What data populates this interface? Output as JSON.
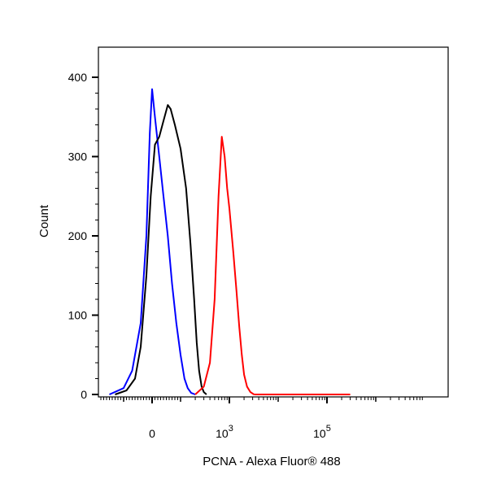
{
  "chart_data": {
    "type": "line",
    "title": "",
    "xlabel": "PCNA - Alexa Fluor® 488",
    "ylabel": "Count",
    "x_scale": "biexponential",
    "x_ticks": [
      {
        "value": 0,
        "base": "0",
        "exp": ""
      },
      {
        "value": 1000,
        "base": "10",
        "exp": "3"
      },
      {
        "value": 100000,
        "base": "10",
        "exp": "5"
      }
    ],
    "ylim": [
      0,
      400
    ],
    "y_ticks": [
      {
        "value": 0,
        "label": "0"
      },
      {
        "value": 100,
        "label": "100"
      },
      {
        "value": 200,
        "label": "200"
      },
      {
        "value": 300,
        "label": "300"
      },
      {
        "value": 400,
        "label": "400"
      }
    ],
    "legend": "none",
    "grid": false,
    "series": [
      {
        "color": "#0000ff",
        "x": [
          -150,
          -100,
          -70,
          -40,
          -20,
          -8,
          0,
          10,
          25,
          40,
          55,
          70,
          85,
          100,
          120,
          140,
          165,
          200
        ],
        "y": [
          0,
          8,
          30,
          90,
          200,
          330,
          385,
          350,
          300,
          250,
          200,
          140,
          90,
          50,
          20,
          8,
          2,
          0
        ]
      },
      {
        "color": "#000000",
        "x": [
          -130,
          -90,
          -60,
          -40,
          -20,
          -5,
          10,
          25,
          40,
          55,
          65,
          80,
          100,
          130,
          160,
          190,
          215,
          240,
          270,
          300,
          340
        ],
        "y": [
          0,
          5,
          20,
          60,
          150,
          250,
          315,
          325,
          345,
          365,
          360,
          340,
          310,
          260,
          190,
          120,
          65,
          30,
          10,
          3,
          0
        ]
      },
      {
        "color": "#ff0000",
        "x": [
          200,
          300,
          400,
          500,
          600,
          700,
          800,
          900,
          1000,
          1200,
          1400,
          1600,
          1800,
          2000,
          2300,
          2700,
          3200
        ],
        "y": [
          0,
          10,
          40,
          120,
          250,
          325,
          300,
          260,
          235,
          180,
          130,
          85,
          50,
          25,
          10,
          3,
          0
        ]
      },
      {
        "color": "#ff0000",
        "x": [
          3200,
          300000
        ],
        "y": [
          0,
          0
        ]
      }
    ]
  }
}
